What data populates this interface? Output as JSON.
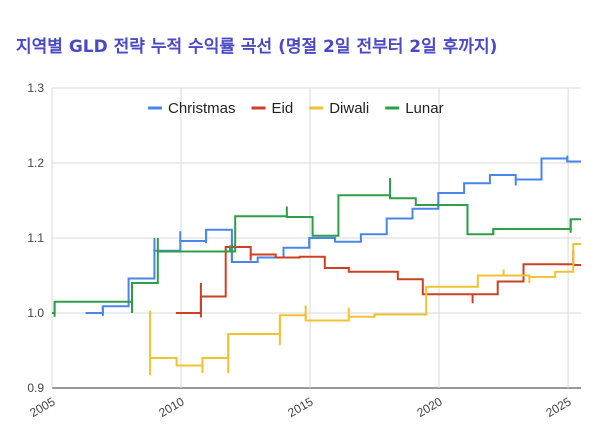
{
  "chart_data": {
    "type": "line",
    "title": "지역별 GLD 전략 누적 수익률 곡선 (명절 2일 전부터 2일 후까지)",
    "title_color": "#4a4ac8",
    "xlim": [
      2005,
      2025.5
    ],
    "ylim": [
      0.9,
      1.3
    ],
    "x_ticks": [
      "2005",
      "2010",
      "2015",
      "2020",
      "2025"
    ],
    "y_ticks": [
      "0.9",
      "1.0",
      "1.1",
      "1.2",
      "1.3"
    ],
    "grid": true,
    "legend_position": "top",
    "series": [
      {
        "name": "Christmas",
        "color": "#4a86e8",
        "x": [
          2006.3,
          2006.97,
          2007.97,
          2008.97,
          2009.97,
          2010.97,
          2011.97,
          2012.97,
          2013.97,
          2014.97,
          2015.97,
          2016.97,
          2017.97,
          2018.97,
          2019.97,
          2020.97,
          2021.97,
          2022.97,
          2023.97,
          2024.97,
          2025.5
        ],
        "y": [
          1.0,
          1.009,
          1.046,
          1.083,
          1.096,
          1.111,
          1.068,
          1.074,
          1.087,
          1.1,
          1.095,
          1.105,
          1.126,
          1.139,
          1.16,
          1.173,
          1.184,
          1.178,
          1.206,
          1.202,
          1.202
        ],
        "spikes": [
          [
            2006.97,
            0.996
          ],
          [
            2009.97,
            1.109
          ],
          [
            2010.97,
            1.093
          ],
          [
            2011.97,
            1.098
          ],
          [
            2014.97,
            1.087
          ],
          [
            2022.97,
            1.17
          ],
          [
            2024.97,
            1.21
          ],
          [
            2008.97,
            1.1
          ]
        ]
      },
      {
        "name": "Eid",
        "color": "#cc4125",
        "x": [
          2009.8,
          2010.77,
          2011.73,
          2012.7,
          2013.67,
          2014.6,
          2015.57,
          2016.5,
          2017.47,
          2018.4,
          2019.37,
          2020.33,
          2021.3,
          2022.27,
          2023.27,
          2024.2,
          2025.2,
          2025.5
        ],
        "y": [
          1.0,
          1.022,
          1.088,
          1.078,
          1.074,
          1.075,
          1.06,
          1.055,
          1.055,
          1.045,
          1.025,
          1.025,
          1.025,
          1.042,
          1.065,
          1.065,
          1.064,
          1.064
        ],
        "spikes": [
          [
            2010.77,
            0.994
          ],
          [
            2010.77,
            1.04
          ],
          [
            2012.7,
            1.07
          ],
          [
            2021.3,
            1.013
          ],
          [
            2025.2,
            1.084
          ]
        ]
      },
      {
        "name": "Diwali",
        "color": "#f1c232",
        "x": [
          2008.8,
          2009.83,
          2010.83,
          2011.83,
          2013.83,
          2014.83,
          2016.5,
          2017.5,
          2018.5,
          2019.5,
          2020.5,
          2021.5,
          2022.5,
          2023.5,
          2024.5,
          2025.2,
          2025.5
        ],
        "y": [
          0.94,
          0.93,
          0.94,
          0.972,
          0.997,
          0.99,
          0.995,
          0.998,
          0.998,
          1.035,
          1.035,
          1.05,
          1.05,
          1.048,
          1.055,
          1.092,
          1.092
        ],
        "spikes": [
          [
            2008.8,
            0.917
          ],
          [
            2008.8,
            1.003
          ],
          [
            2010.83,
            0.92
          ],
          [
            2011.83,
            0.92
          ],
          [
            2013.83,
            0.957
          ],
          [
            2014.83,
            1.01
          ],
          [
            2016.5,
            1.007
          ],
          [
            2022.5,
            1.058
          ],
          [
            2023.5,
            1.04
          ]
        ]
      },
      {
        "name": "Lunar",
        "color": "#2e9e48",
        "x": [
          2005,
          2005.1,
          2008.1,
          2009.1,
          2012.1,
          2013.1,
          2014.1,
          2015.1,
          2016.1,
          2017.1,
          2018.1,
          2019.1,
          2020.1,
          2021.1,
          2022.1,
          2023.1,
          2024.1,
          2025.1,
          2025.5
        ],
        "y": [
          1.0,
          1.015,
          1.04,
          1.082,
          1.129,
          1.129,
          1.128,
          1.103,
          1.157,
          1.157,
          1.153,
          1.144,
          1.144,
          1.105,
          1.112,
          1.112,
          1.112,
          1.125,
          1.125
        ],
        "spikes": [
          [
            2005.1,
            0.995
          ],
          [
            2008.1,
            1.0
          ],
          [
            2009.1,
            1.1
          ],
          [
            2011.9,
            1.09
          ],
          [
            2014.1,
            1.142
          ],
          [
            2018.1,
            1.18
          ],
          [
            2021.1,
            1.14
          ],
          [
            2022.1,
            1.105
          ],
          [
            2025.1,
            1.107
          ]
        ]
      }
    ]
  }
}
